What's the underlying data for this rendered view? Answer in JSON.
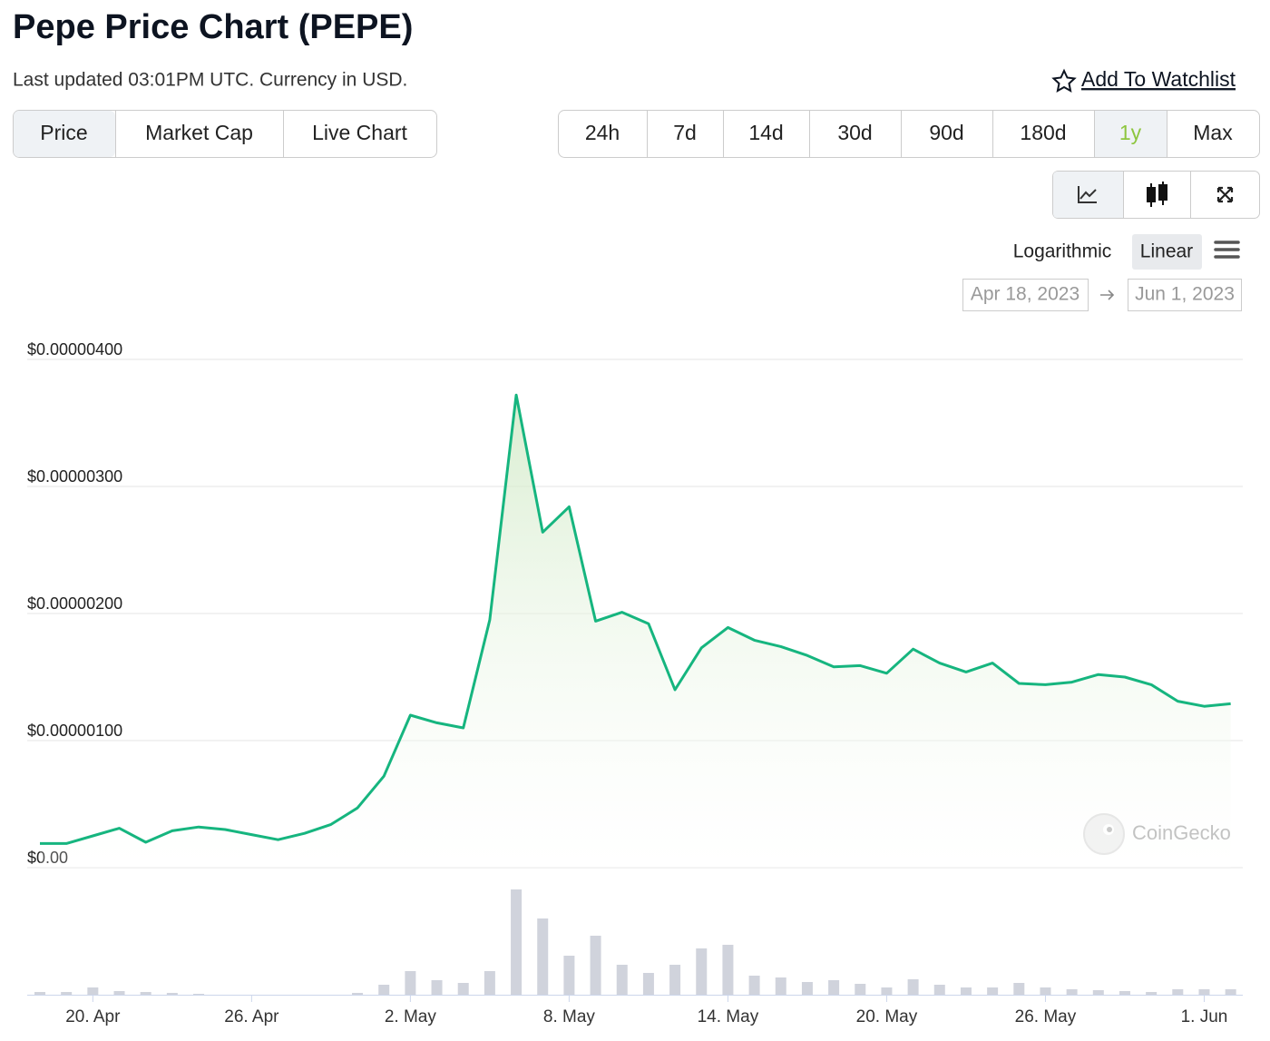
{
  "header": {
    "title": "Pepe Price Chart (PEPE)",
    "subtitle": "Last updated 03:01PM UTC. Currency in USD.",
    "watchlist": "Add To Watchlist"
  },
  "tabs": [
    "Price",
    "Market Cap",
    "Live Chart"
  ],
  "active_tab": 0,
  "ranges": [
    "24h",
    "7d",
    "14d",
    "30d",
    "90d",
    "180d",
    "1y",
    "Max"
  ],
  "active_range": 6,
  "scale_options": [
    "Logarithmic",
    "Linear"
  ],
  "active_scale": 1,
  "date_range": {
    "from": "Apr 18, 2023",
    "to": "Jun 1, 2023"
  },
  "watermark": "CoinGecko",
  "chart_data": {
    "type": "line",
    "categories": [
      null,
      null,
      "20. Apr",
      null,
      null,
      null,
      null,
      null,
      "26. Apr",
      null,
      null,
      null,
      null,
      null,
      "2. May",
      null,
      null,
      null,
      null,
      null,
      "8. May",
      null,
      null,
      null,
      null,
      null,
      "14. May",
      null,
      null,
      null,
      null,
      null,
      "20. May",
      null,
      null,
      null,
      null,
      null,
      "26. May",
      null,
      null,
      null,
      null,
      null,
      "1. Jun",
      null
    ],
    "values": [
      1.9e-07,
      1.9e-07,
      2.5e-07,
      3.1e-07,
      2e-07,
      2.9e-07,
      3.2e-07,
      3e-07,
      2.6e-07,
      2.2e-07,
      2.7e-07,
      3.4e-07,
      4.7e-07,
      7.2e-07,
      1.2e-06,
      1.14e-06,
      1.1e-06,
      1.95e-06,
      3.72e-06,
      2.64e-06,
      2.84e-06,
      1.94e-06,
      2.01e-06,
      1.92e-06,
      1.4e-06,
      1.73e-06,
      1.89e-06,
      1.79e-06,
      1.74e-06,
      1.67e-06,
      1.58e-06,
      1.59e-06,
      1.53e-06,
      1.72e-06,
      1.61e-06,
      1.54e-06,
      1.61e-06,
      1.45e-06,
      1.44e-06,
      1.46e-06,
      1.52e-06,
      1.5e-06,
      1.44e-06,
      1.31e-06,
      1.27e-06,
      1.29e-06
    ],
    "color": "#16b57f",
    "ylim": [
      0,
      4e-06
    ],
    "yticks": [
      {
        "value": 0,
        "label": "$0.00"
      },
      {
        "value": 1e-06,
        "label": "$0.00000100"
      },
      {
        "value": 2e-06,
        "label": "$0.00000200"
      },
      {
        "value": 3e-06,
        "label": "$0.00000300"
      },
      {
        "value": 4e-06,
        "label": "$0.00000400"
      }
    ],
    "grid": true,
    "volume": [
      3,
      3,
      8,
      4,
      3,
      2,
      1,
      0,
      0,
      0,
      0,
      0,
      2,
      11,
      26,
      16,
      13,
      26,
      116,
      84,
      43,
      65,
      33,
      24,
      33,
      51,
      55,
      21,
      19,
      14,
      16,
      12,
      8,
      17,
      11,
      8,
      8,
      13,
      8,
      6,
      5,
      4,
      3,
      6,
      6,
      6
    ],
    "volume_color": "#d0d3dc",
    "y2lim": [
      0,
      120
    ]
  }
}
